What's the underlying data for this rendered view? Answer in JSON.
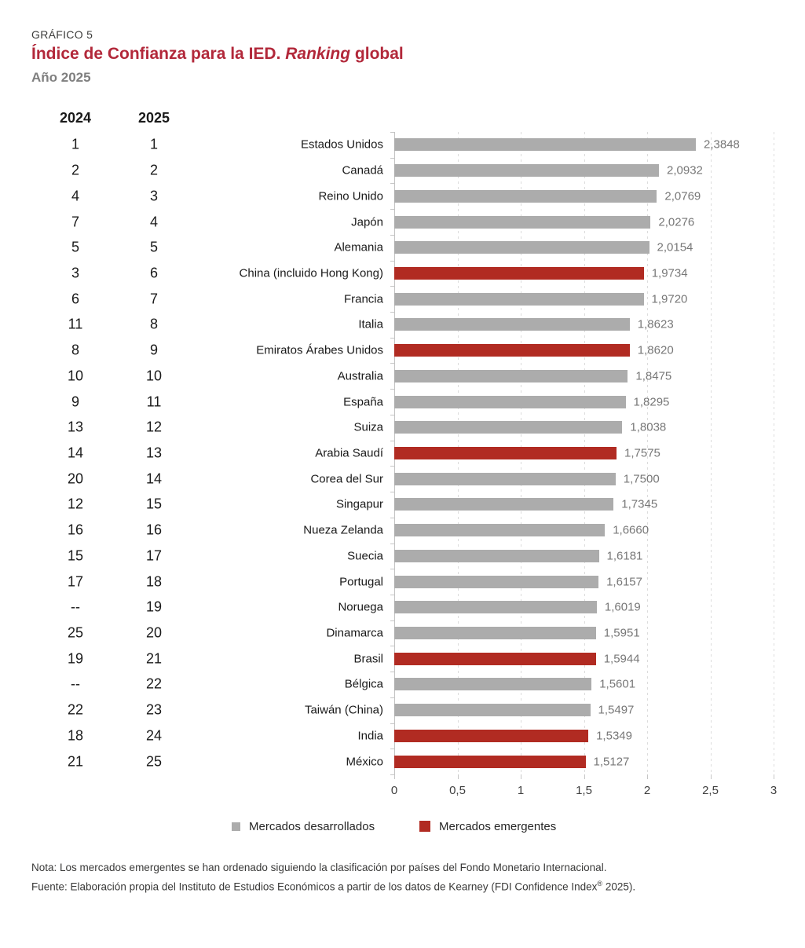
{
  "header": {
    "kicker": "GRÁFICO 5",
    "title_main": "Índice de Confianza para la IED. ",
    "title_italic": "Ranking",
    "title_end": " global",
    "subtitle": "Año 2025"
  },
  "columns": {
    "rank_2024": "2024",
    "rank_2025": "2025"
  },
  "chart_data": {
    "type": "bar",
    "orientation": "horizontal",
    "title": "Índice de Confianza para la IED. Ranking global. Año 2025",
    "xlabel": "",
    "ylabel": "",
    "xlim": [
      0,
      3
    ],
    "x_ticks": [
      "0",
      "0,5",
      "1",
      "1,5",
      "2",
      "2,5",
      "3"
    ],
    "grid": "vertical-dashed",
    "legend_position": "bottom",
    "colors": {
      "developed": "#acacac",
      "emerging": "#b12b22"
    },
    "rows": [
      {
        "rank_2024": "1",
        "rank_2025": "1",
        "country": "Estados Unidos",
        "value": 2.3848,
        "value_label": "2,3848",
        "market": "developed"
      },
      {
        "rank_2024": "2",
        "rank_2025": "2",
        "country": "Canadá",
        "value": 2.0932,
        "value_label": "2,0932",
        "market": "developed"
      },
      {
        "rank_2024": "4",
        "rank_2025": "3",
        "country": "Reino Unido",
        "value": 2.0769,
        "value_label": "2,0769",
        "market": "developed"
      },
      {
        "rank_2024": "7",
        "rank_2025": "4",
        "country": "Japón",
        "value": 2.0276,
        "value_label": "2,0276",
        "market": "developed"
      },
      {
        "rank_2024": "5",
        "rank_2025": "5",
        "country": "Alemania",
        "value": 2.0154,
        "value_label": "2,0154",
        "market": "developed"
      },
      {
        "rank_2024": "3",
        "rank_2025": "6",
        "country": "China (incluido Hong Kong)",
        "value": 1.9734,
        "value_label": "1,9734",
        "market": "emerging"
      },
      {
        "rank_2024": "6",
        "rank_2025": "7",
        "country": "Francia",
        "value": 1.972,
        "value_label": "1,9720",
        "market": "developed"
      },
      {
        "rank_2024": "11",
        "rank_2025": "8",
        "country": "Italia",
        "value": 1.8623,
        "value_label": "1,8623",
        "market": "developed"
      },
      {
        "rank_2024": "8",
        "rank_2025": "9",
        "country": "Emiratos Árabes Unidos",
        "value": 1.862,
        "value_label": "1,8620",
        "market": "emerging"
      },
      {
        "rank_2024": "10",
        "rank_2025": "10",
        "country": "Australia",
        "value": 1.8475,
        "value_label": "1,8475",
        "market": "developed"
      },
      {
        "rank_2024": "9",
        "rank_2025": "11",
        "country": "España",
        "value": 1.8295,
        "value_label": "1,8295",
        "market": "developed"
      },
      {
        "rank_2024": "13",
        "rank_2025": "12",
        "country": "Suiza",
        "value": 1.8038,
        "value_label": "1,8038",
        "market": "developed"
      },
      {
        "rank_2024": "14",
        "rank_2025": "13",
        "country": "Arabia Saudí",
        "value": 1.7575,
        "value_label": "1,7575",
        "market": "emerging"
      },
      {
        "rank_2024": "20",
        "rank_2025": "14",
        "country": "Corea del Sur",
        "value": 1.75,
        "value_label": "1,7500",
        "market": "developed"
      },
      {
        "rank_2024": "12",
        "rank_2025": "15",
        "country": "Singapur",
        "value": 1.7345,
        "value_label": "1,7345",
        "market": "developed"
      },
      {
        "rank_2024": "16",
        "rank_2025": "16",
        "country": "Nueza Zelanda",
        "value": 1.666,
        "value_label": "1,6660",
        "market": "developed"
      },
      {
        "rank_2024": "15",
        "rank_2025": "17",
        "country": "Suecia",
        "value": 1.6181,
        "value_label": "1,6181",
        "market": "developed"
      },
      {
        "rank_2024": "17",
        "rank_2025": "18",
        "country": "Portugal",
        "value": 1.6157,
        "value_label": "1,6157",
        "market": "developed"
      },
      {
        "rank_2024": "--",
        "rank_2025": "19",
        "country": "Noruega",
        "value": 1.6019,
        "value_label": "1,6019",
        "market": "developed"
      },
      {
        "rank_2024": "25",
        "rank_2025": "20",
        "country": "Dinamarca",
        "value": 1.5951,
        "value_label": "1,5951",
        "market": "developed"
      },
      {
        "rank_2024": "19",
        "rank_2025": "21",
        "country": "Brasil",
        "value": 1.5944,
        "value_label": "1,5944",
        "market": "emerging"
      },
      {
        "rank_2024": "--",
        "rank_2025": "22",
        "country": "Bélgica",
        "value": 1.5601,
        "value_label": "1,5601",
        "market": "developed"
      },
      {
        "rank_2024": "22",
        "rank_2025": "23",
        "country": "Taiwán (China)",
        "value": 1.5497,
        "value_label": "1,5497",
        "market": "developed"
      },
      {
        "rank_2024": "18",
        "rank_2025": "24",
        "country": "India",
        "value": 1.5349,
        "value_label": "1,5349",
        "market": "emerging"
      },
      {
        "rank_2024": "21",
        "rank_2025": "25",
        "country": "México",
        "value": 1.5127,
        "value_label": "1,5127",
        "market": "emerging"
      }
    ]
  },
  "legend": [
    {
      "label": "Mercados desarrollados",
      "color": "#acacac"
    },
    {
      "label": "Mercados emergentes",
      "color": "#b12b22"
    }
  ],
  "notes": {
    "nota": "Nota: Los mercados emergentes se han ordenado siguiendo la clasificación por países del Fondo Monetario Internacional.",
    "fuente_pre": "Fuente: Elaboración propia del Instituto de Estudios Económicos a partir de los datos de Kearney (FDI Confidence Index",
    "fuente_sup": "®",
    "fuente_post": " 2025)."
  }
}
